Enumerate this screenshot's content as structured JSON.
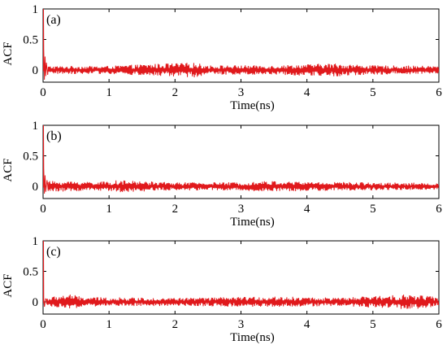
{
  "chart_data": [
    {
      "type": "line",
      "panel_label": "(a)",
      "xlabel": "Time(ns)",
      "ylabel": "ACF",
      "xlim": [
        0,
        6
      ],
      "ylim": [
        -0.2,
        1
      ],
      "xticks": [
        0,
        1,
        2,
        3,
        4,
        5,
        6
      ],
      "yticks": [
        0,
        0.5,
        1
      ],
      "ytick_labels": [
        "0",
        "0.5",
        "1"
      ],
      "grid": false,
      "series": [
        {
          "color": "#e0191c",
          "peak": {
            "x": 0,
            "y": 1
          },
          "early": [
            {
              "x": 0.01,
              "y": 0.34
            },
            {
              "x": 0.02,
              "y": -0.16
            },
            {
              "x": 0.03,
              "y": 0.22
            },
            {
              "x": 0.04,
              "y": -0.1
            },
            {
              "x": 0.05,
              "y": 0.12
            },
            {
              "x": 0.07,
              "y": -0.08
            }
          ],
          "noise_envelope": [
            {
              "x": 0.1,
              "amp": 0.06
            },
            {
              "x": 1.0,
              "amp": 0.06
            },
            {
              "x": 1.6,
              "amp": 0.09
            },
            {
              "x": 2.3,
              "amp": 0.11
            },
            {
              "x": 2.5,
              "amp": 0.07
            },
            {
              "x": 3.5,
              "amp": 0.07
            },
            {
              "x": 4.4,
              "amp": 0.1
            },
            {
              "x": 5.0,
              "amp": 0.07
            },
            {
              "x": 6.0,
              "amp": 0.06
            }
          ]
        }
      ]
    },
    {
      "type": "line",
      "panel_label": "(b)",
      "xlabel": "Time(ns)",
      "ylabel": "ACF",
      "xlim": [
        0,
        6
      ],
      "ylim": [
        -0.2,
        1
      ],
      "xticks": [
        0,
        1,
        2,
        3,
        4,
        5,
        6
      ],
      "yticks": [
        0,
        0.5,
        1
      ],
      "ytick_labels": [
        "0",
        "0.5",
        "1"
      ],
      "grid": false,
      "series": [
        {
          "color": "#e0191c",
          "peak": {
            "x": 0,
            "y": 1
          },
          "early": [
            {
              "x": 0.01,
              "y": 0.3
            },
            {
              "x": 0.02,
              "y": -0.12
            },
            {
              "x": 0.03,
              "y": 0.18
            },
            {
              "x": 0.04,
              "y": -0.09
            },
            {
              "x": 0.06,
              "y": 0.1
            }
          ],
          "noise_envelope": [
            {
              "x": 0.1,
              "amp": 0.08
            },
            {
              "x": 1.0,
              "amp": 0.07
            },
            {
              "x": 1.1,
              "amp": 0.09
            },
            {
              "x": 2.0,
              "amp": 0.06
            },
            {
              "x": 3.0,
              "amp": 0.06
            },
            {
              "x": 3.3,
              "amp": 0.08
            },
            {
              "x": 4.0,
              "amp": 0.07
            },
            {
              "x": 5.0,
              "amp": 0.06
            },
            {
              "x": 6.0,
              "amp": 0.05
            }
          ]
        }
      ]
    },
    {
      "type": "line",
      "panel_label": "(c)",
      "xlabel": "Time(ns)",
      "ylabel": "ACF",
      "xlim": [
        0,
        6
      ],
      "ylim": [
        -0.2,
        1
      ],
      "xticks": [
        0,
        1,
        2,
        3,
        4,
        5,
        6
      ],
      "yticks": [
        0,
        0.5,
        1
      ],
      "ytick_labels": [
        "0",
        "0.5",
        "1"
      ],
      "grid": false,
      "series": [
        {
          "color": "#e0191c",
          "peak": {
            "x": 0,
            "y": 1
          },
          "early": [
            {
              "x": 0.01,
              "y": 0.06
            },
            {
              "x": 0.02,
              "y": -0.08
            },
            {
              "x": 0.04,
              "y": 0.05
            }
          ],
          "noise_envelope": [
            {
              "x": 0.05,
              "amp": 0.06
            },
            {
              "x": 0.4,
              "amp": 0.12
            },
            {
              "x": 0.6,
              "amp": 0.07
            },
            {
              "x": 2.0,
              "amp": 0.06
            },
            {
              "x": 3.6,
              "amp": 0.08
            },
            {
              "x": 4.5,
              "amp": 0.06
            },
            {
              "x": 5.4,
              "amp": 0.11
            },
            {
              "x": 5.8,
              "amp": 0.1
            },
            {
              "x": 6.0,
              "amp": 0.06
            }
          ]
        }
      ]
    }
  ]
}
